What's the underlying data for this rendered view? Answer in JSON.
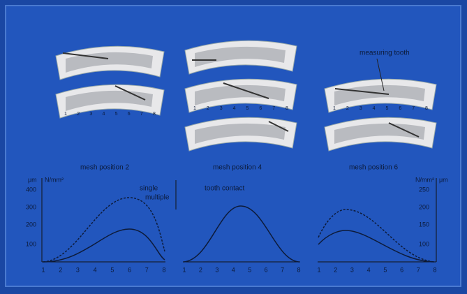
{
  "labels": {
    "measuring_tooth": "measuring tooth",
    "mesh_positions": [
      "mesh position 2",
      "mesh position 4",
      "mesh position 6"
    ],
    "single": "single",
    "multiple": "multiple",
    "tooth_contact": "tooth contact"
  },
  "left_axis": {
    "units": [
      "μm",
      "N/mm²"
    ],
    "ticks": [
      "400",
      "300",
      "200",
      "100"
    ]
  },
  "right_axis": {
    "units": [
      "N/mm²",
      "μm"
    ],
    "ticks": [
      "250",
      "200",
      "150",
      "100"
    ]
  },
  "tooth_numbers": [
    "1",
    "2",
    "3",
    "4",
    "5",
    "6",
    "7",
    "8"
  ]
}
